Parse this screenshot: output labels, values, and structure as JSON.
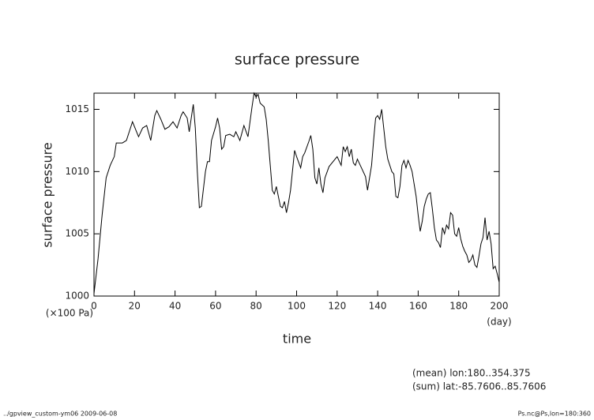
{
  "chart_data": {
    "type": "line",
    "title": "surface pressure",
    "xlabel": "time",
    "ylabel": "surface pressure",
    "y_unit": "(×100 Pa)",
    "x_unit": "(day)",
    "notes": [
      "(mean) lon:180..354.375",
      "(sum) lat:-85.7606..85.7606"
    ],
    "footer_left": "../gpview_custom-ym06  2009-06-08",
    "footer_right": "Ps.nc@Ps,lon=180:360",
    "xlim": [
      0,
      200
    ],
    "ylim": [
      1000,
      1016.3
    ],
    "xticks": [
      0,
      20,
      40,
      60,
      80,
      100,
      120,
      140,
      160,
      180,
      200
    ],
    "yticks": [
      1000,
      1005,
      1010,
      1015
    ],
    "series": [
      {
        "color": "#000000",
        "x": [
          0,
          2,
          4,
          6,
          8,
          10,
          11,
          14,
          16,
          18,
          19,
          21,
          22,
          24,
          26,
          28,
          30,
          31,
          33,
          35,
          37,
          39,
          41,
          43,
          44,
          46,
          47,
          49,
          50,
          51,
          52,
          53,
          55,
          56,
          57,
          58,
          60,
          61,
          62,
          63,
          64,
          65,
          67,
          69,
          70,
          72,
          74,
          76,
          78,
          79,
          80,
          81,
          82,
          84,
          85,
          86,
          87,
          88,
          89,
          90,
          92,
          93,
          94,
          95,
          96,
          97,
          99,
          100,
          102,
          103,
          104,
          106,
          107,
          108,
          109,
          110,
          111,
          112,
          113,
          114,
          116,
          118,
          120,
          122,
          123,
          124,
          125,
          126,
          127,
          128,
          129,
          130,
          132,
          134,
          135,
          137,
          138,
          139,
          140,
          141,
          142,
          143,
          144,
          145,
          147,
          148,
          149,
          150,
          151,
          152,
          153,
          154,
          155,
          156,
          157,
          158,
          159,
          160,
          161,
          162,
          163,
          164,
          165,
          166,
          167,
          168,
          169,
          170,
          171,
          172,
          173,
          174,
          175,
          176,
          177,
          178,
          179,
          180,
          181,
          182,
          183,
          184,
          185,
          186,
          187,
          188,
          189,
          190,
          191,
          192,
          193,
          194,
          195,
          196,
          197,
          198,
          199,
          200
        ],
        "values": [
          1000.2,
          1003,
          1006.5,
          1009.5,
          1010.5,
          1011.2,
          1012.3,
          1012.3,
          1012.5,
          1013.5,
          1014,
          1013.2,
          1012.8,
          1013.5,
          1013.7,
          1012.5,
          1014.5,
          1014.9,
          1014.2,
          1013.4,
          1013.6,
          1014,
          1013.5,
          1014.5,
          1014.8,
          1014.3,
          1013.2,
          1015.4,
          1013.5,
          1010,
          1007.1,
          1007.2,
          1010,
          1010.8,
          1010.8,
          1012.5,
          1013.6,
          1014.3,
          1013.5,
          1011.8,
          1012,
          1012.9,
          1013,
          1012.8,
          1013.2,
          1012.5,
          1013.7,
          1012.8,
          1015.2,
          1016.3,
          1016,
          1016.2,
          1015.5,
          1015.2,
          1014.2,
          1012.5,
          1010.5,
          1008.5,
          1008.2,
          1008.8,
          1007.2,
          1007.1,
          1007.6,
          1006.7,
          1007.5,
          1008.5,
          1011.7,
          1011.2,
          1010.3,
          1011.2,
          1011.5,
          1012.4,
          1012.9,
          1011.8,
          1009.5,
          1009,
          1010.3,
          1009,
          1008.3,
          1009.5,
          1010.4,
          1010.8,
          1011.2,
          1010.5,
          1012,
          1011.6,
          1012,
          1011.2,
          1011.8,
          1010.7,
          1010.5,
          1011,
          1010.3,
          1009.6,
          1008.5,
          1010.5,
          1012.5,
          1014.3,
          1014.5,
          1014.2,
          1015,
          1013.5,
          1012,
          1011,
          1010,
          1009.8,
          1008,
          1007.9,
          1008.8,
          1010.5,
          1010.9,
          1010.3,
          1010.9,
          1010.5,
          1010,
          1009,
          1008,
          1006.5,
          1005.2,
          1006,
          1007.2,
          1007.8,
          1008.2,
          1008.3,
          1007,
          1005.5,
          1004.5,
          1004.3,
          1003.9,
          1005.5,
          1005,
          1005.7,
          1005.4,
          1006.7,
          1006.5,
          1005,
          1004.8,
          1005.5,
          1004.6,
          1004,
          1003.6,
          1003.3,
          1002.7,
          1002.9,
          1003.3,
          1002.5,
          1002.3,
          1003.2,
          1004.2,
          1004.7,
          1006.3,
          1004.5,
          1005.2,
          1004.2,
          1002.2,
          1002.4,
          1001.8,
          1001.1
        ]
      }
    ]
  }
}
